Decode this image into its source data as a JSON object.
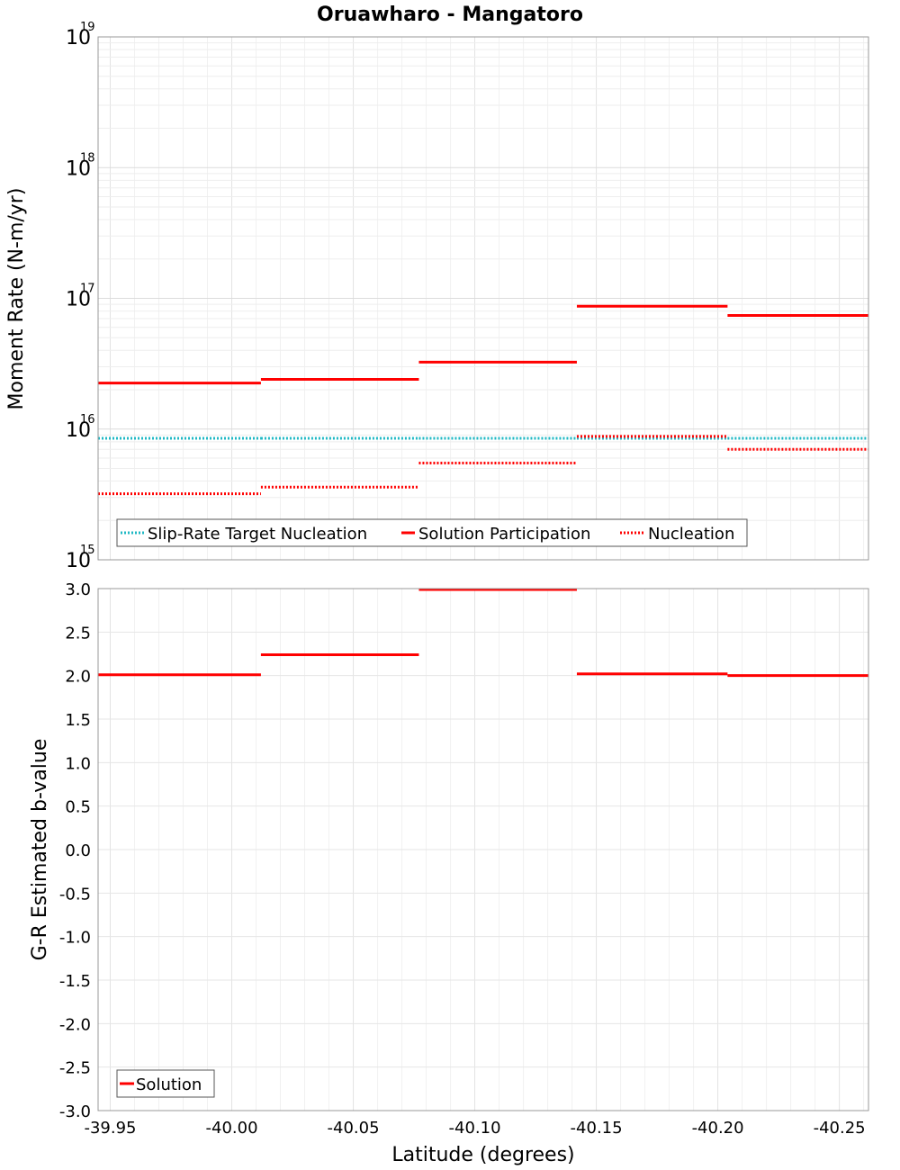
{
  "chart_data": [
    {
      "type": "line",
      "title": "Oruawharo - Mangatoro",
      "ylabel": "Moment Rate (N-m/yr)",
      "xlabel": "",
      "yscale": "log",
      "ylim": [
        1000000000000000.0,
        1e+19
      ],
      "xlim": [
        -39.945,
        -40.262
      ],
      "x_reversed": true,
      "ytick_bases": [
        "10",
        "10",
        "10",
        "10",
        "10"
      ],
      "ytick_exponents": [
        "15",
        "16",
        "17",
        "18",
        "19"
      ],
      "grid": true,
      "legend_position": "bottom-left",
      "series": [
        {
          "name": "Slip-Rate Target Nucleation",
          "style": "dotted",
          "color": "#1fb8c4",
          "segments": [
            {
              "x": [
                -39.945,
                -40.012
              ],
              "y": 8500000000000000.0
            },
            {
              "x": [
                -40.012,
                -40.077
              ],
              "y": 8500000000000000.0
            },
            {
              "x": [
                -40.077,
                -40.142
              ],
              "y": 8500000000000000.0
            },
            {
              "x": [
                -40.142,
                -40.204
              ],
              "y": 8500000000000000.0
            },
            {
              "x": [
                -40.204,
                -40.262
              ],
              "y": 8500000000000000.0
            }
          ]
        },
        {
          "name": "Solution Participation",
          "style": "solid",
          "color": "#ff0000",
          "segments": [
            {
              "x": [
                -39.945,
                -40.012
              ],
              "y": 2.25e+16
            },
            {
              "x": [
                -40.012,
                -40.077
              ],
              "y": 2.4e+16
            },
            {
              "x": [
                -40.077,
                -40.142
              ],
              "y": 3.25e+16
            },
            {
              "x": [
                -40.142,
                -40.204
              ],
              "y": 8.7e+16
            },
            {
              "x": [
                -40.204,
                -40.262
              ],
              "y": 7.4e+16
            }
          ]
        },
        {
          "name": "Nucleation",
          "style": "dotted",
          "color": "#ff0000",
          "segments": [
            {
              "x": [
                -39.945,
                -40.012
              ],
              "y": 3200000000000000.0
            },
            {
              "x": [
                -40.012,
                -40.077
              ],
              "y": 3600000000000000.0
            },
            {
              "x": [
                -40.077,
                -40.142
              ],
              "y": 5500000000000000.0
            },
            {
              "x": [
                -40.142,
                -40.204
              ],
              "y": 8800000000000000.0
            },
            {
              "x": [
                -40.204,
                -40.262
              ],
              "y": 7000000000000000.0
            }
          ]
        }
      ]
    },
    {
      "type": "line",
      "title": "",
      "ylabel": "G-R Estimated b-value",
      "xlabel": "Latitude (degrees)",
      "ylim": [
        -3.0,
        3.0
      ],
      "xlim": [
        -39.945,
        -40.262
      ],
      "x_reversed": true,
      "yticks": [
        "-3.0",
        "-2.5",
        "-2.0",
        "-1.5",
        "-1.0",
        "-0.5",
        "0.0",
        "0.5",
        "1.0",
        "1.5",
        "2.0",
        "2.5",
        "3.0"
      ],
      "xticks": [
        "-39.95",
        "-40.00",
        "-40.05",
        "-40.10",
        "-40.15",
        "-40.20",
        "-40.25"
      ],
      "grid": true,
      "legend_position": "bottom-left",
      "series": [
        {
          "name": "Solution",
          "style": "solid",
          "color": "#ff0000",
          "segments": [
            {
              "x": [
                -39.945,
                -40.012
              ],
              "y": 2.01
            },
            {
              "x": [
                -40.012,
                -40.077
              ],
              "y": 2.24
            },
            {
              "x": [
                -40.077,
                -40.142
              ],
              "y": 3.0
            },
            {
              "x": [
                -40.142,
                -40.204
              ],
              "y": 2.02
            },
            {
              "x": [
                -40.204,
                -40.262
              ],
              "y": 2.0
            }
          ]
        }
      ]
    }
  ]
}
